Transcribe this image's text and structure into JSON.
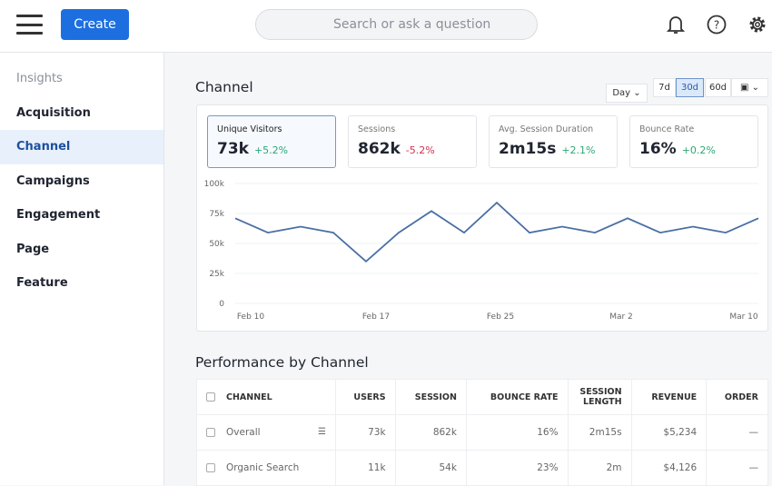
{
  "header": {
    "create_label": "Create",
    "search_placeholder": "Search or ask a question"
  },
  "sidebar": {
    "items": [
      {
        "label": "Insights"
      },
      {
        "label": "Acquisition"
      },
      {
        "label": "Channel"
      },
      {
        "label": "Campaigns"
      },
      {
        "label": "Engagement"
      },
      {
        "label": "Page"
      },
      {
        "label": "Feature"
      }
    ],
    "active": "Channel"
  },
  "main": {
    "title": "Channel",
    "interval": "Day",
    "ranges": [
      "7d",
      "30d",
      "60d"
    ],
    "selected_range": "30d",
    "kpis": [
      {
        "label": "Unique Visitors",
        "value": "73k",
        "delta": "+5.2%",
        "dir": "up"
      },
      {
        "label": "Sessions",
        "value": "862k",
        "delta": "-5.2%",
        "dir": "down"
      },
      {
        "label": "Avg. Session Duration",
        "value": "2m15s",
        "delta": "+2.1%",
        "dir": "up"
      },
      {
        "label": "Bounce Rate",
        "value": "16%",
        "delta": "+0.2%",
        "dir": "up"
      }
    ]
  },
  "chart_data": {
    "type": "line",
    "ylim": [
      0,
      100000
    ],
    "yticks": [
      "0",
      "25k",
      "50k",
      "75k",
      "100k"
    ],
    "xtick_labels": [
      "Feb 10",
      "Feb 17",
      "Feb 25",
      "Mar 2",
      "Mar 10"
    ],
    "values": [
      71000,
      59000,
      64000,
      59000,
      35000,
      59000,
      77000,
      59000,
      84000,
      59000,
      64000,
      59000,
      71000,
      59000,
      64000,
      59000,
      71000
    ],
    "color": "#4a6fa5",
    "grid": true
  },
  "table": {
    "title": "Performance by Channel",
    "columns": [
      "CHANNEL",
      "USERS",
      "SESSION",
      "BOUNCE RATE",
      "SESSION LENGTH",
      "REVENUE",
      "ORDER"
    ],
    "rows": [
      [
        "Overall",
        "73k",
        "862k",
        "16%",
        "2m15s",
        "$5,234",
        "—"
      ],
      [
        "Organic Search",
        "11k",
        "54k",
        "23%",
        "2m",
        "$4,126",
        "—"
      ]
    ]
  }
}
